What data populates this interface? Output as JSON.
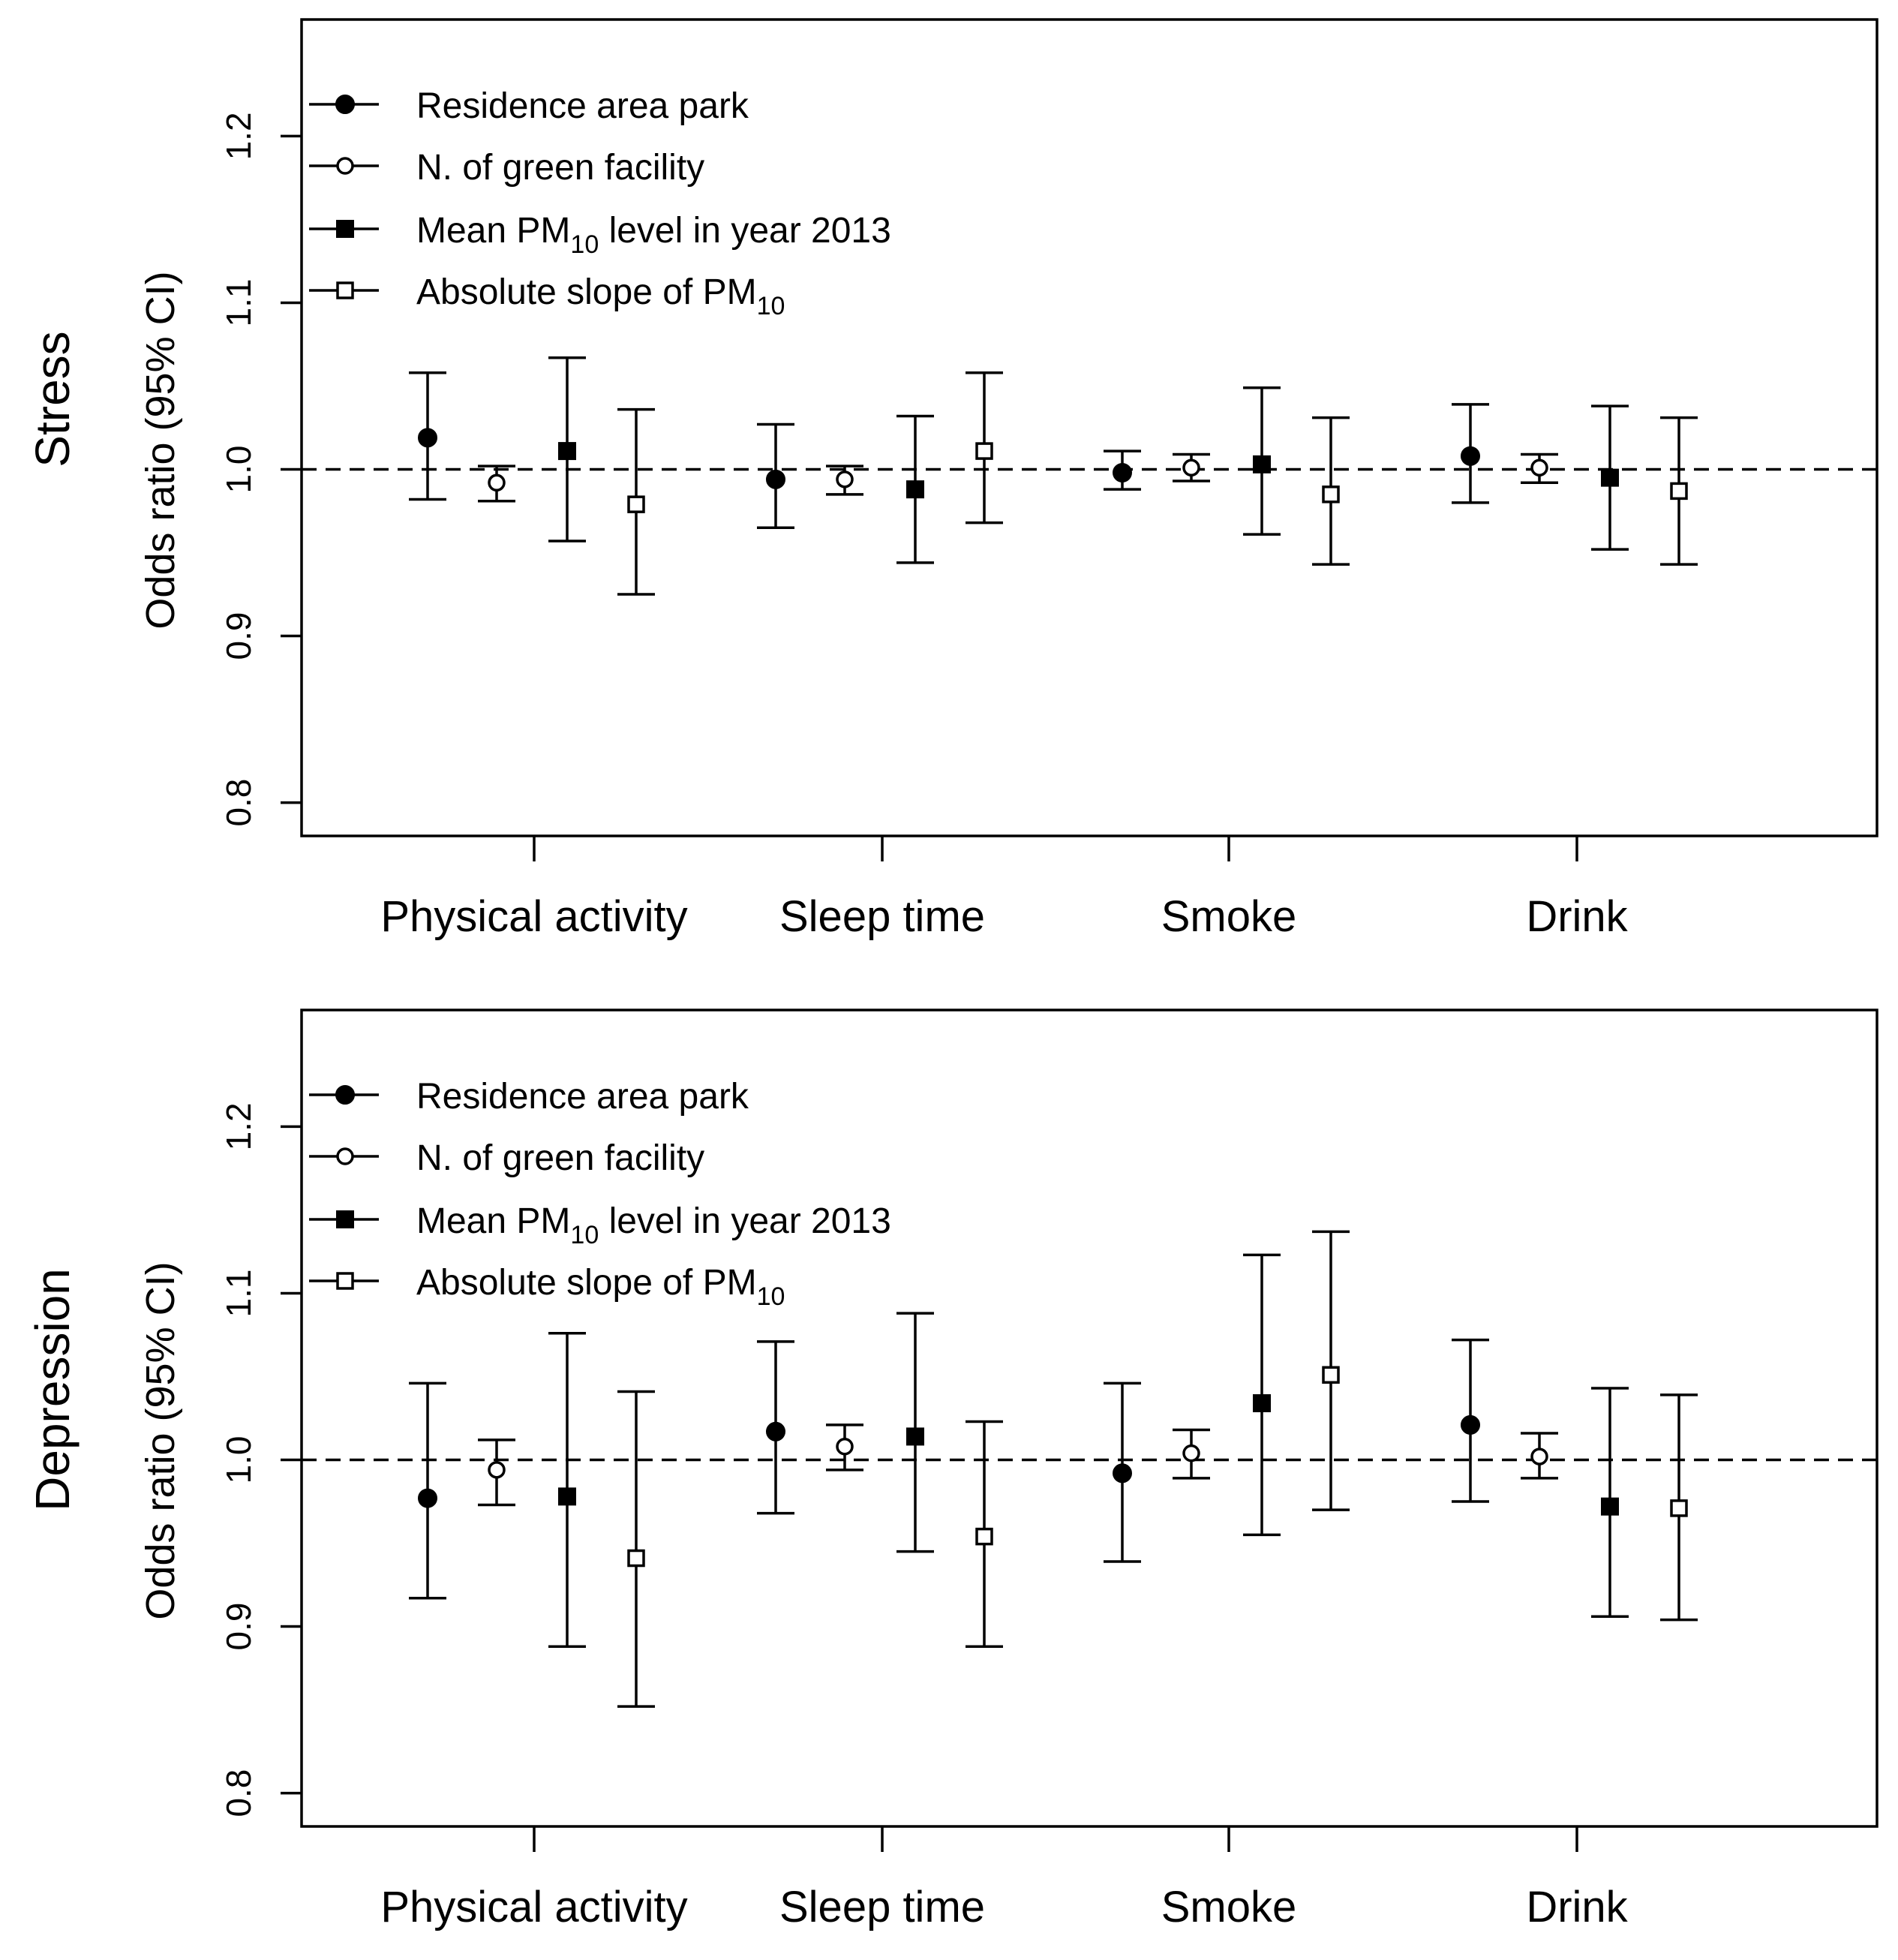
{
  "chart_data": [
    {
      "type": "errorbar",
      "row_label": "Stress",
      "ylabel": "Odds ratio (95% CI)",
      "ylim": [
        0.78,
        1.27
      ],
      "yticks": [
        "0.8",
        "0.9",
        "1.0",
        "1.1",
        "1.2"
      ],
      "reference_line": 1.0,
      "grid": false,
      "legend_position": "top-left",
      "categories": [
        "Physical activity",
        "Sleep time",
        "Smoke",
        "Drink"
      ],
      "series": [
        {
          "name": "Residence area park",
          "marker": "filled-circle",
          "estimate": [
            1.019,
            0.994,
            0.998,
            1.008
          ],
          "lower": [
            0.982,
            0.965,
            0.988,
            0.98
          ],
          "upper": [
            1.058,
            1.027,
            1.011,
            1.039
          ]
        },
        {
          "name": "N. of green facility",
          "marker": "open-circle",
          "estimate": [
            0.992,
            0.994,
            1.001,
            1.001
          ],
          "lower": [
            0.981,
            0.985,
            0.993,
            0.992
          ],
          "upper": [
            1.002,
            1.002,
            1.009,
            1.009
          ]
        },
        {
          "name": "Mean PM10 level in year 2013",
          "marker": "filled-square",
          "estimate": [
            1.011,
            0.988,
            1.003,
            0.995
          ],
          "lower": [
            0.957,
            0.944,
            0.961,
            0.952
          ],
          "upper": [
            1.067,
            1.032,
            1.049,
            1.038
          ]
        },
        {
          "name": "Absolute slope of PM10",
          "marker": "open-square",
          "estimate": [
            0.979,
            1.011,
            0.985,
            0.987
          ],
          "lower": [
            0.925,
            0.968,
            0.943,
            0.943
          ],
          "upper": [
            1.036,
            1.058,
            1.031,
            1.031
          ]
        }
      ]
    },
    {
      "type": "errorbar",
      "row_label": "Depression",
      "ylabel": "Odds ratio (95% CI)",
      "ylim": [
        0.78,
        1.27
      ],
      "yticks": [
        "0.8",
        "0.9",
        "1.0",
        "1.1",
        "1.2"
      ],
      "reference_line": 1.0,
      "grid": false,
      "legend_position": "top-left",
      "categories": [
        "Physical activity",
        "Sleep time",
        "Smoke",
        "Drink"
      ],
      "series": [
        {
          "name": "Residence area park",
          "marker": "filled-circle",
          "estimate": [
            0.977,
            1.017,
            0.992,
            1.021
          ],
          "lower": [
            0.917,
            0.968,
            0.939,
            0.975
          ],
          "upper": [
            1.046,
            1.071,
            1.046,
            1.072
          ]
        },
        {
          "name": "N. of green facility",
          "marker": "open-circle",
          "estimate": [
            0.994,
            1.008,
            1.004,
            1.002
          ],
          "lower": [
            0.973,
            0.994,
            0.989,
            0.989
          ],
          "upper": [
            1.012,
            1.021,
            1.018,
            1.016
          ]
        },
        {
          "name": "Mean PM10 level in year 2013",
          "marker": "filled-square",
          "estimate": [
            0.978,
            1.014,
            1.034,
            0.972
          ],
          "lower": [
            0.888,
            0.945,
            0.955,
            0.906
          ],
          "upper": [
            1.076,
            1.088,
            1.123,
            1.043
          ]
        },
        {
          "name": "Absolute slope of PM10",
          "marker": "open-square",
          "estimate": [
            0.941,
            0.954,
            1.051,
            0.971
          ],
          "lower": [
            0.852,
            0.888,
            0.97,
            0.904
          ],
          "upper": [
            1.041,
            1.023,
            1.137,
            1.039
          ]
        }
      ]
    }
  ],
  "legend_items": [
    {
      "label": "Residence area park",
      "sub": "",
      "tail": "",
      "marker": "filled-circle"
    },
    {
      "label": "N. of green facility",
      "sub": "",
      "tail": "",
      "marker": "open-circle"
    },
    {
      "label": "Mean PM",
      "sub": "10",
      "tail": " level in year 2013",
      "marker": "filled-square"
    },
    {
      "label": "Absolute slope of PM",
      "sub": "10",
      "tail": "",
      "marker": "open-square"
    }
  ]
}
